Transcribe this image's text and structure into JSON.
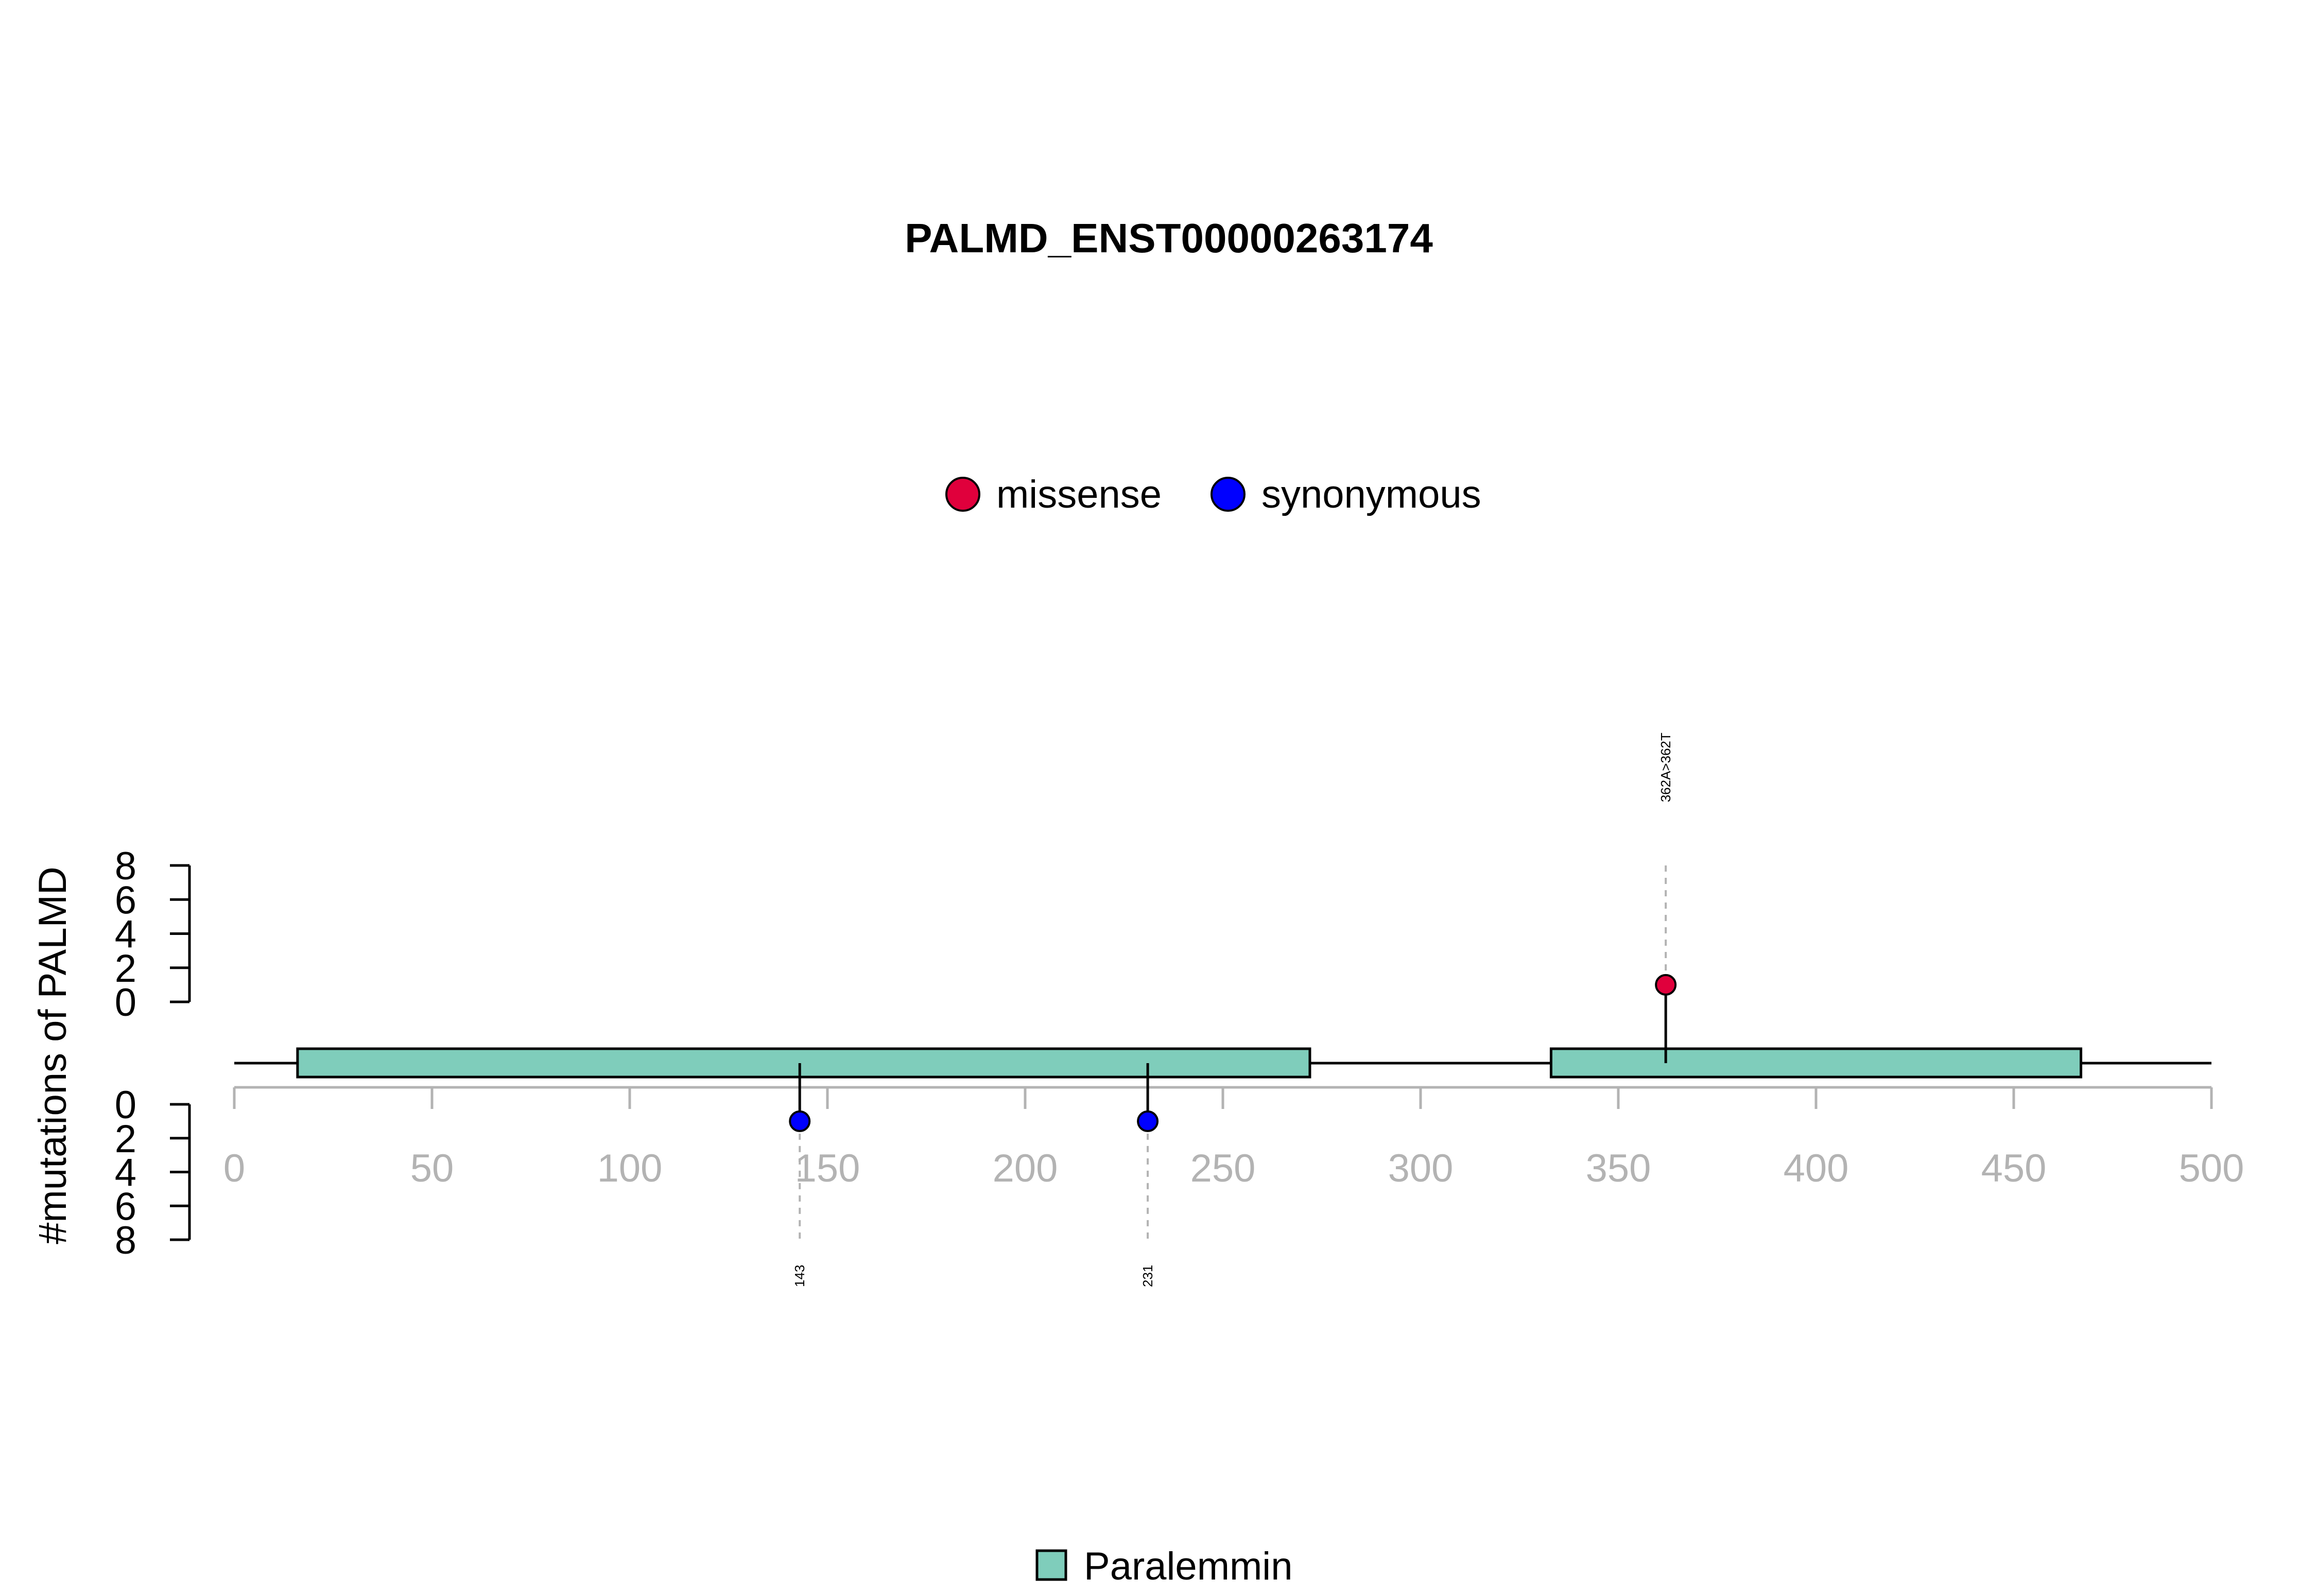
{
  "chart_data": {
    "type": "lollipop",
    "title": "PALMD_ENST00000263174",
    "ylabel": "#mutations of PALMD",
    "xlim": [
      0,
      500
    ],
    "x_ticks": [
      0,
      50,
      100,
      150,
      200,
      250,
      300,
      350,
      400,
      450,
      500
    ],
    "y_ticks_top": [
      0,
      2,
      4,
      6,
      8
    ],
    "y_ticks_bottom": [
      0,
      2,
      4,
      6,
      8
    ],
    "ylim": [
      0,
      8
    ],
    "legend": [
      {
        "name": "missense",
        "color": "#e0003c"
      },
      {
        "name": "synonymous",
        "color": "#0000ff"
      }
    ],
    "domain_legend": [
      {
        "name": "Paralemmin",
        "color": "#7fcdbb"
      }
    ],
    "domains": [
      {
        "name": "Paralemmin",
        "start": 16,
        "end": 272
      },
      {
        "name": "Paralemmin",
        "start": 333,
        "end": 467
      }
    ],
    "protein_length": 500,
    "mutations": [
      {
        "position": 362,
        "count": 1,
        "type": "missense",
        "side": "top",
        "label": "362A>362T"
      },
      {
        "position": 143,
        "count": 1,
        "type": "synonymous",
        "side": "bottom",
        "label": "143"
      },
      {
        "position": 231,
        "count": 1,
        "type": "synonymous",
        "side": "bottom",
        "label": "231"
      }
    ]
  }
}
